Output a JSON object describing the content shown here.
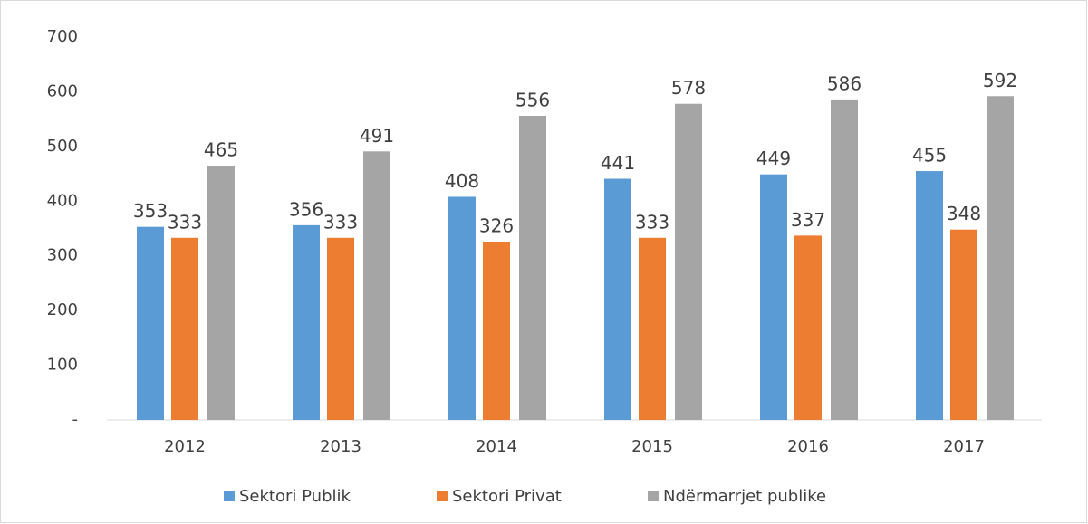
{
  "chart_data": {
    "type": "bar",
    "categories": [
      "2012",
      "2013",
      "2014",
      "2015",
      "2016",
      "2017"
    ],
    "series": [
      {
        "name": "Sektori Publik",
        "color": "#5b9bd5",
        "values": [
          353,
          356,
          408,
          441,
          449,
          455
        ]
      },
      {
        "name": "Sektori Privat",
        "color": "#ed7d31",
        "values": [
          333,
          333,
          326,
          333,
          337,
          348
        ]
      },
      {
        "name": "Ndërmarrjet publike",
        "color": "#a5a5a5",
        "values": [
          465,
          491,
          556,
          578,
          586,
          592
        ]
      }
    ],
    "ylim": [
      0,
      700
    ],
    "yticks": [
      {
        "value": 0,
        "label": "-"
      },
      100,
      200,
      300,
      400,
      500,
      600,
      700
    ],
    "grid": false,
    "legend": "bottom"
  }
}
